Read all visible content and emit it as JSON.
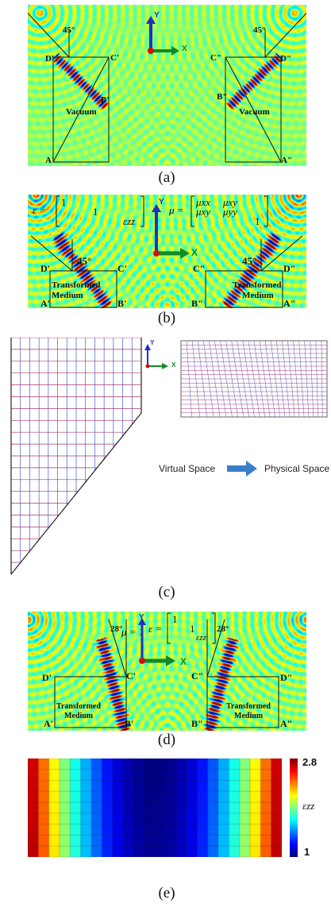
{
  "captions": {
    "a": "(a)",
    "b": "(b)",
    "c": "(c)",
    "d": "(d)",
    "e": "(e)"
  },
  "axes": {
    "y": "Y",
    "x": "X"
  },
  "panel_a": {
    "angle_left": "45°",
    "angle_right": "45°",
    "points": {
      "Dp": "D'",
      "Cp": "C'",
      "Bp": "B'",
      "Ap": "A'",
      "Cpp": "C\"",
      "Dpp": "D\"",
      "Bpp": "B\"",
      "App": "A\""
    },
    "region_left": "Vacuum",
    "region_right": "Vacuum"
  },
  "panel_b": {
    "angle_left": "45°",
    "angle_right": "45°",
    "eps_lhs": "ε =",
    "eps_11": "1",
    "eps_22": "1",
    "eps_33": "εzz",
    "mu_lhs": "μ =",
    "mu_11": "μxx",
    "mu_12": "μxy",
    "mu_21": "μxy",
    "mu_22": "μyy",
    "mu_33": "1",
    "points": {
      "Dp": "D'",
      "Cp": "C'",
      "Bp": "B'",
      "Ap": "A'",
      "Cpp": "C\"",
      "Dpp": "D\"",
      "Bpp": "B\"",
      "App": "A\""
    },
    "medium_line1": "Transformed",
    "medium_line2": "Medium"
  },
  "panel_c": {
    "virtual": "Virtual Space",
    "physical": "Physical Space",
    "arrow_icon": "right-arrow-icon"
  },
  "panel_d": {
    "angle_left": "28°",
    "angle_right": "28°",
    "mu_eq": "μ = 1",
    "eps_lhs": "ε =",
    "eps_11": "1",
    "eps_22": "1",
    "eps_33": "εzz",
    "points": {
      "Dp": "D'",
      "Cp": "C'",
      "Bp": "B'",
      "Ap": "A'",
      "Cpp": "C\"",
      "Dpp": "D\"",
      "Bpp": "B\"",
      "App": "A\""
    },
    "medium_line1": "Transformed",
    "medium_line2": "Medium"
  },
  "panel_e": {
    "cb_max": "2.8",
    "cb_min": "1",
    "cb_label": "εzz"
  },
  "colors": {
    "field_bg": "#7fe07a",
    "red_axis": "#d01010",
    "green_axis": "#128a28",
    "blue_axis": "#2030c0",
    "grid_magenta": "#b03070",
    "grid_blue": "#4060c0"
  }
}
